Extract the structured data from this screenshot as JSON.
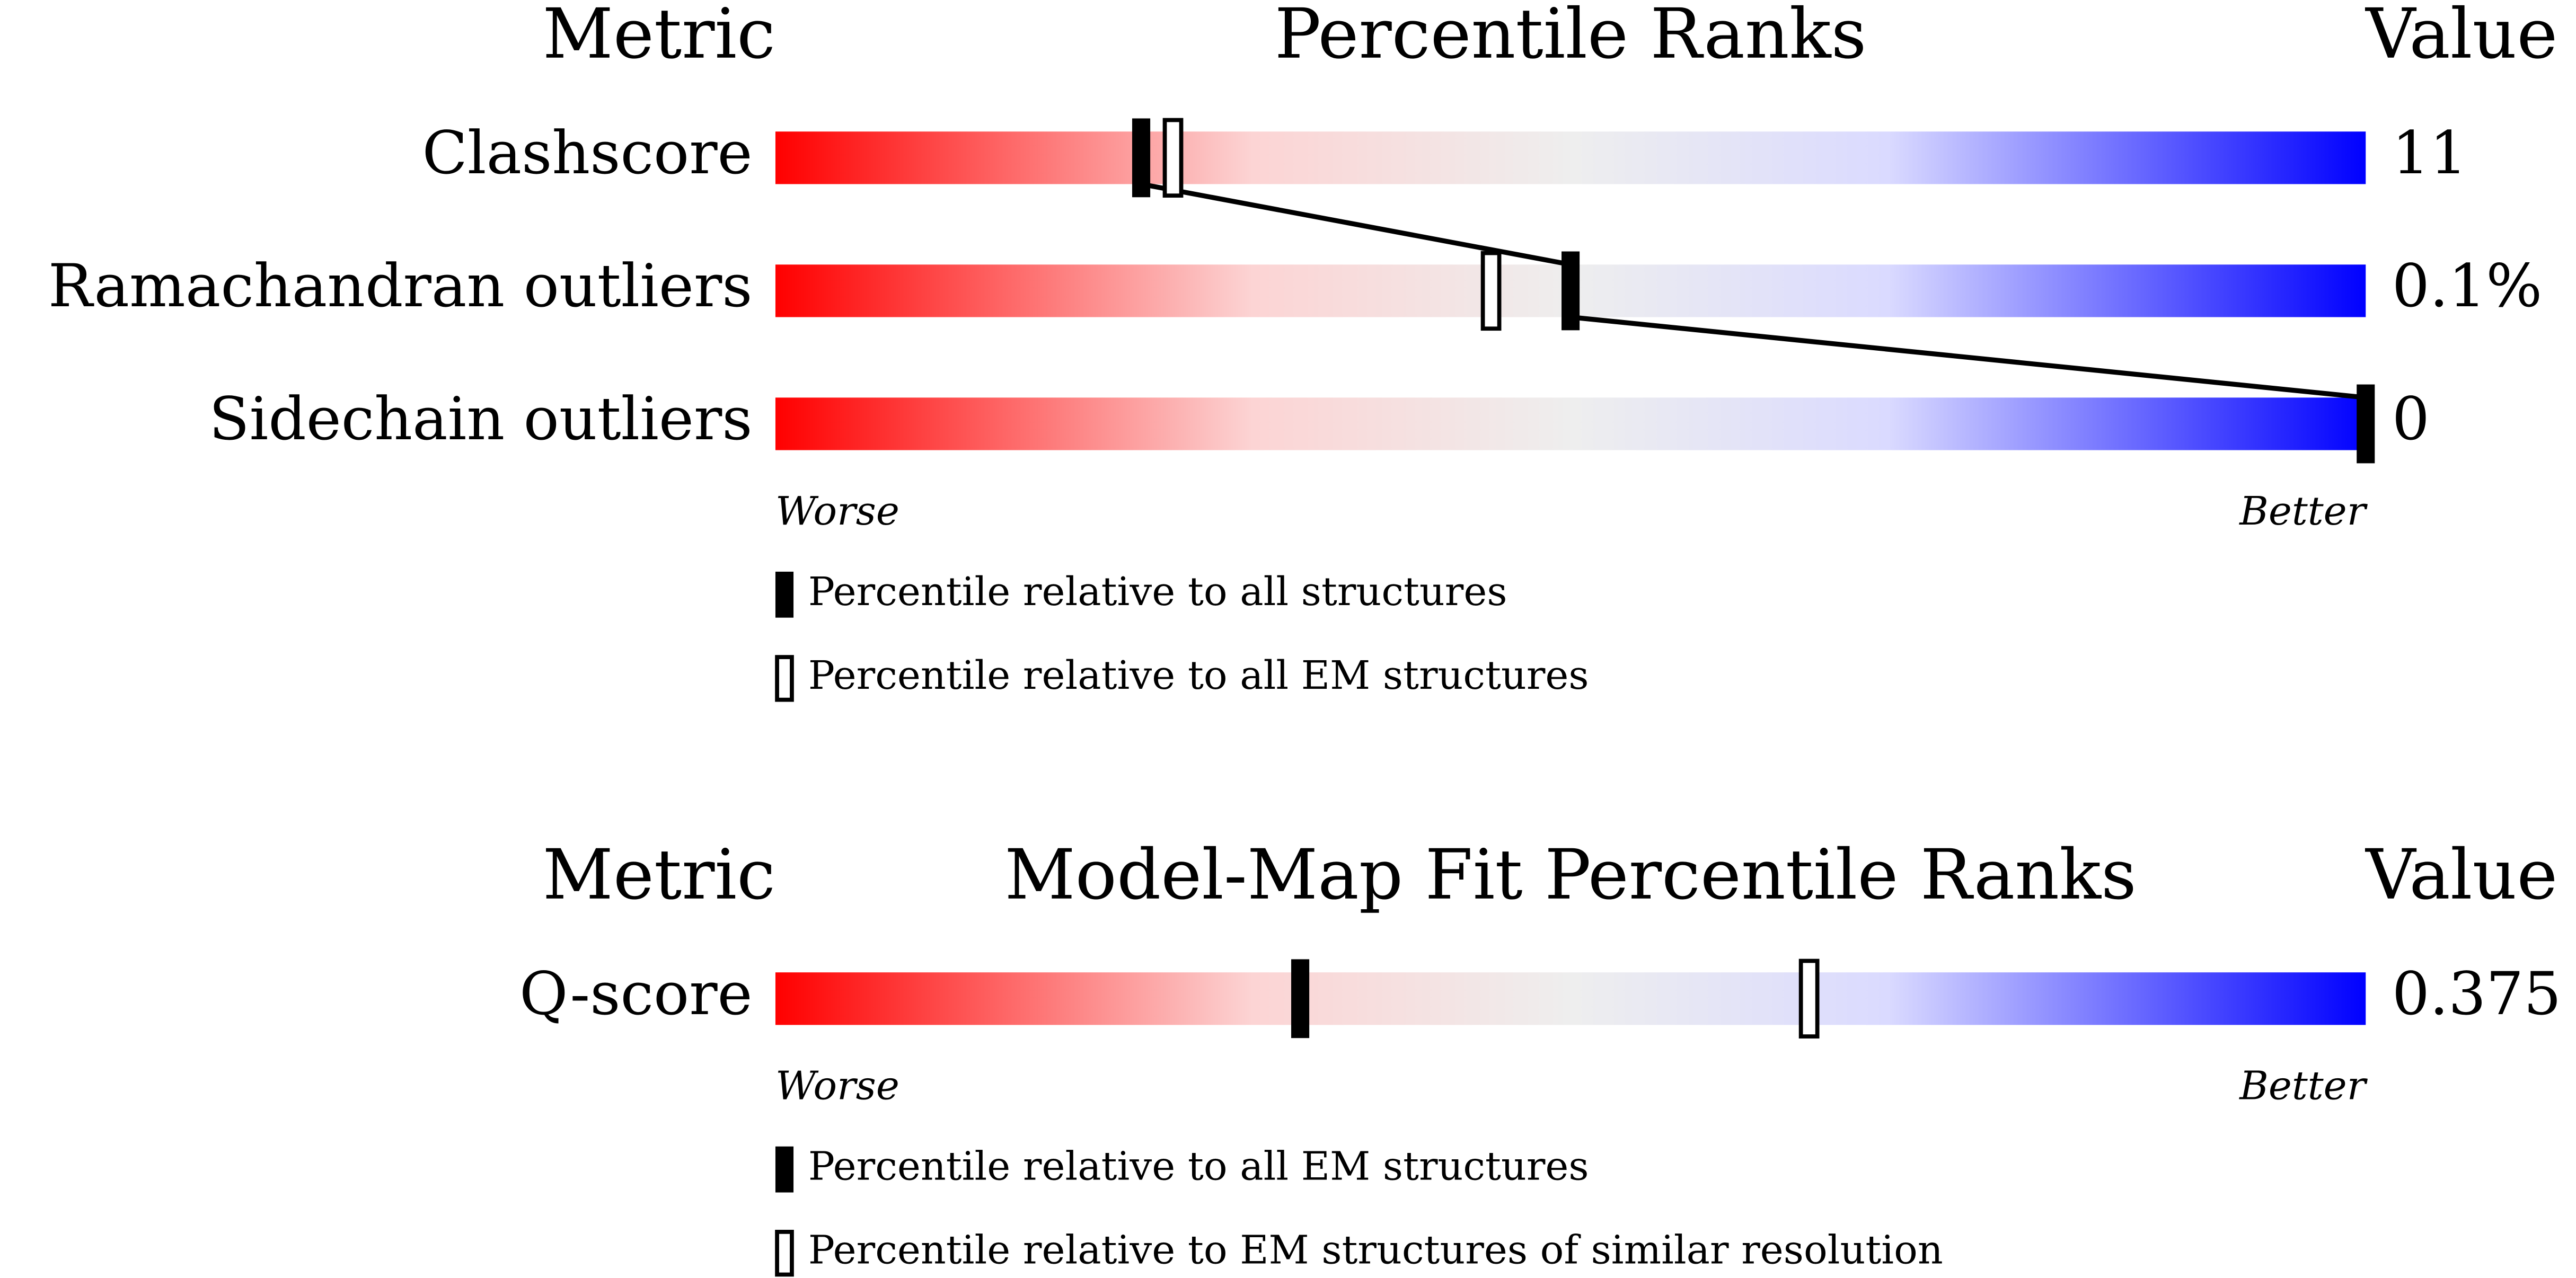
{
  "chart_data": [
    {
      "type": "slider",
      "header": {
        "metric": "Metric",
        "title": "Percentile Ranks",
        "value": "Value"
      },
      "xlim": [
        0,
        100
      ],
      "rows": [
        {
          "metric": "Clashscore",
          "value_label": "11"
        },
        {
          "metric": "Ramachandran outliers",
          "value_label": "0.1%"
        },
        {
          "metric": "Sidechain outliers",
          "value_label": "0"
        }
      ],
      "series": [
        {
          "name": "Percentile relative to all structures",
          "style": "filled",
          "color": "#000000",
          "values": [
            23,
            50,
            100
          ]
        },
        {
          "name": "Percentile relative to all EM structures",
          "style": "open",
          "color": "#000000",
          "values": [
            25,
            45,
            null
          ]
        }
      ],
      "worse": "Worse",
      "better": "Better"
    },
    {
      "type": "slider",
      "header": {
        "metric": "Metric",
        "title": "Model-Map Fit Percentile Ranks",
        "value": "Value"
      },
      "xlim": [
        0,
        100
      ],
      "rows": [
        {
          "metric": "Q-score",
          "value_label": "0.375"
        }
      ],
      "series": [
        {
          "name": "Percentile relative to all EM structures",
          "style": "filled",
          "color": "#000000",
          "values": [
            33
          ]
        },
        {
          "name": "Percentile relative to EM structures of similar resolution",
          "style": "open",
          "color": "#000000",
          "values": [
            65
          ]
        }
      ],
      "worse": "Worse",
      "better": "Better"
    }
  ]
}
